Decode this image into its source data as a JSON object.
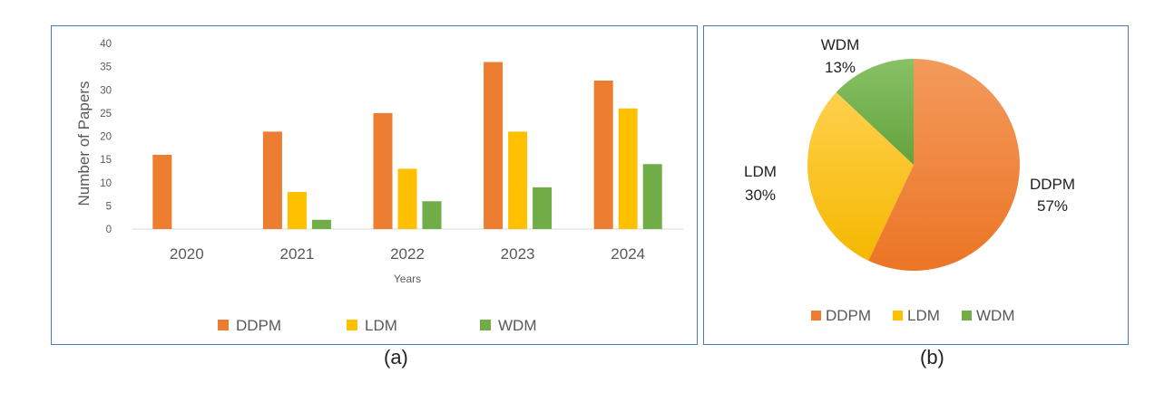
{
  "colors": {
    "DDPM": "#ED7D31",
    "LDM": "#FFC000",
    "WDM": "#70AD47",
    "border": "#4A78C2"
  },
  "chart_data": [
    {
      "type": "bar",
      "panel": "(a)",
      "categories": [
        "2020",
        "2021",
        "2022",
        "2023",
        "2024"
      ],
      "series": [
        {
          "name": "DDPM",
          "values": [
            16,
            21,
            25,
            36,
            32
          ]
        },
        {
          "name": "LDM",
          "values": [
            0,
            8,
            13,
            21,
            26
          ]
        },
        {
          "name": "WDM",
          "values": [
            0,
            2,
            6,
            9,
            14
          ]
        }
      ],
      "xlabel": "Years",
      "ylabel": "Number of Papers",
      "ylim": [
        0,
        40
      ],
      "yticks": [
        0,
        5,
        10,
        15,
        20,
        25,
        30,
        35,
        40
      ],
      "grid": false,
      "legend": "bottom"
    },
    {
      "type": "pie",
      "panel": "(b)",
      "slices": [
        {
          "name": "DDPM",
          "value": 57,
          "label": "57%"
        },
        {
          "name": "LDM",
          "value": 30,
          "label": "30%"
        },
        {
          "name": "WDM",
          "value": 13,
          "label": "13%"
        }
      ],
      "legend": "bottom"
    }
  ],
  "captions": {
    "a": "(a)",
    "b": "(b)"
  }
}
